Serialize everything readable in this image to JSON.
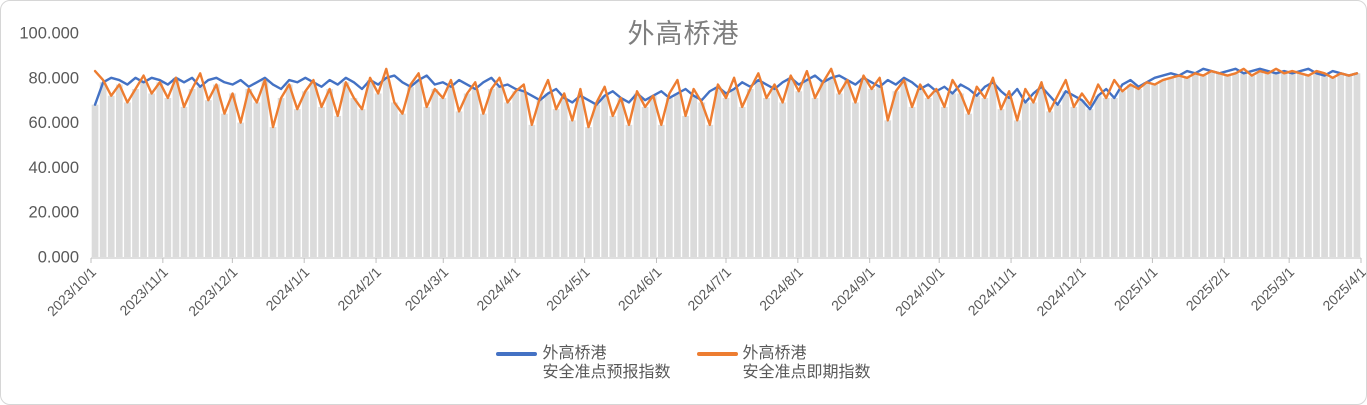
{
  "chart_data": {
    "type": "line",
    "title": "外高桥港",
    "xlabel": "",
    "ylabel": "",
    "ylim": [
      0,
      100
    ],
    "grid": false,
    "legend_position": "bottom",
    "background_bars": "min_of_series",
    "bar_color": "#dbdbdb",
    "axis_color": "#bfbfbf",
    "text_color": "#595959",
    "title_color": "#7f7f7f",
    "y_tick_labels": [
      "0.000",
      "20.000",
      "40.000",
      "60.000",
      "80.000",
      "100.000"
    ],
    "x_tick_labels": [
      "2023/10/1",
      "2023/11/1",
      "2023/12/1",
      "2024/1/1",
      "2024/2/1",
      "2024/3/1",
      "2024/4/1",
      "2024/5/1",
      "2024/6/1",
      "2024/7/1",
      "2024/8/1",
      "2024/9/1",
      "2024/10/1",
      "2024/11/1",
      "2024/12/1",
      "2025/1/1",
      "2025/2/1",
      "2025/3/1",
      "2025/4/1"
    ],
    "series": [
      {
        "name": "外高桥港安全准点预报指数",
        "legend_line1": "外高桥港",
        "legend_line2": "安全准点预报指数",
        "color": "#4472c4",
        "values": [
          68,
          78,
          80,
          79,
          77,
          80,
          78,
          80,
          79,
          77,
          80,
          78,
          80,
          76,
          79,
          80,
          78,
          77,
          79,
          76,
          78,
          80,
          77,
          75,
          79,
          78,
          80,
          78,
          76,
          79,
          77,
          80,
          78,
          75,
          79,
          77,
          80,
          81,
          78,
          76,
          79,
          81,
          77,
          78,
          76,
          79,
          77,
          75,
          78,
          80,
          76,
          77,
          75,
          74,
          72,
          70,
          73,
          75,
          71,
          69,
          72,
          70,
          68,
          72,
          74,
          71,
          69,
          73,
          70,
          72,
          74,
          71,
          73,
          75,
          72,
          70,
          74,
          76,
          73,
          75,
          78,
          76,
          79,
          77,
          75,
          78,
          80,
          77,
          79,
          81,
          78,
          80,
          81,
          79,
          77,
          80,
          78,
          76,
          79,
          77,
          80,
          78,
          75,
          77,
          74,
          76,
          73,
          77,
          75,
          72,
          76,
          78,
          74,
          71,
          75,
          69,
          73,
          76,
          72,
          68,
          74,
          72,
          70,
          66,
          72,
          75,
          71,
          77,
          79,
          76,
          78,
          80,
          81,
          82,
          81,
          83,
          82,
          84,
          83,
          82,
          83,
          84,
          82,
          83,
          84,
          83,
          82,
          83,
          82,
          83,
          84,
          82,
          81,
          83,
          82,
          81,
          82
        ]
      },
      {
        "name": "外高桥港安全准点即期指数",
        "legend_line1": "外高桥港",
        "legend_line2": "安全准点即期指数",
        "color": "#ed7d31",
        "values": [
          83,
          79,
          72,
          77,
          69,
          75,
          81,
          73,
          78,
          71,
          80,
          67,
          75,
          82,
          70,
          77,
          64,
          73,
          60,
          75,
          69,
          79,
          58,
          71,
          77,
          66,
          74,
          79,
          67,
          75,
          63,
          78,
          71,
          66,
          80,
          73,
          84,
          69,
          64,
          77,
          82,
          67,
          75,
          71,
          79,
          65,
          73,
          78,
          64,
          75,
          80,
          69,
          74,
          77,
          59,
          71,
          79,
          66,
          73,
          61,
          75,
          58,
          69,
          76,
          63,
          71,
          59,
          74,
          67,
          72,
          59,
          73,
          79,
          63,
          75,
          69,
          59,
          77,
          71,
          80,
          67,
          75,
          82,
          71,
          77,
          69,
          81,
          74,
          83,
          71,
          78,
          84,
          73,
          79,
          69,
          81,
          75,
          80,
          61,
          74,
          79,
          67,
          77,
          71,
          75,
          67,
          79,
          73,
          64,
          76,
          71,
          80,
          66,
          74,
          61,
          75,
          69,
          78,
          65,
          72,
          79,
          67,
          73,
          68,
          77,
          71,
          79,
          74,
          77,
          75,
          78,
          77,
          79,
          80,
          81,
          80,
          82,
          81,
          83,
          82,
          81,
          82,
          84,
          81,
          83,
          82,
          84,
          82,
          83,
          82,
          81,
          83,
          82,
          80,
          82,
          81,
          82
        ]
      }
    ]
  }
}
